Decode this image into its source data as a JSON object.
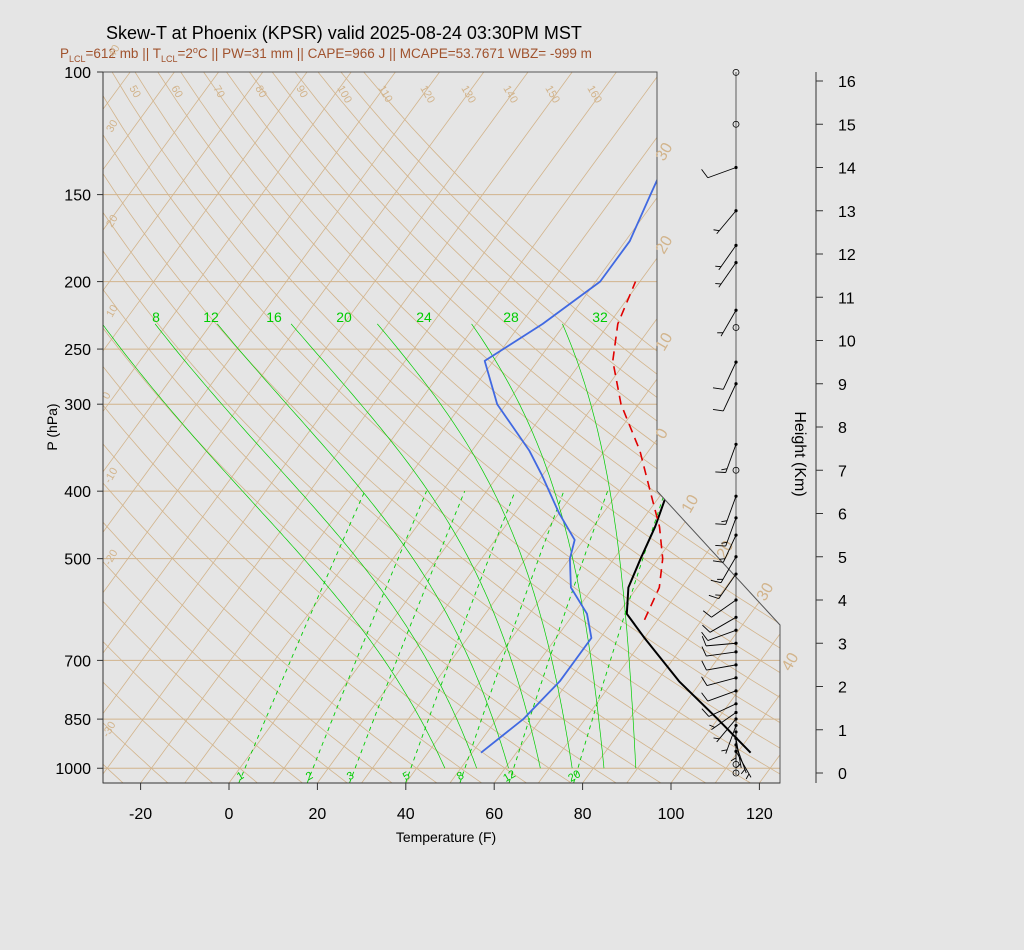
{
  "title": "Skew-T at Phoenix (KPSR) valid 2025-08-24 03:30PM MST",
  "subtitle": {
    "p_main": "P",
    "p_sub": "LCL",
    "p_rest": "=612 mb || T",
    "t_sub": "LCL",
    "t_rest": "=2",
    "deg_sup": "o",
    "tail": "C || PW=31 mm || CAPE=966 J || MCAPE=53.7671 WBZ= -999 m"
  },
  "colors": {
    "title": "#000000",
    "subtitle": "#a0522d",
    "temperature": "#000000",
    "dewpoint": "#4169e1",
    "parcel": "#e00000",
    "isotherm": "#d2b48c",
    "isobar": "#d2b48c",
    "dry_adiabat": "#d2b48c",
    "mixing_ratio": "#00cc00",
    "moist_adiabat": "#00cc00",
    "wind": "#000000",
    "background": "#e5e5e5"
  },
  "chart_data": {
    "type": "line",
    "skew_type": "skew-T log-P",
    "xlabel": "Temperature (F)",
    "ylabel": "P (hPa)",
    "xlim": [
      -28,
      125
    ],
    "ylim": [
      1050,
      100
    ],
    "y_scale": "log",
    "x_ticks": [
      "-20",
      "0",
      "20",
      "40",
      "60",
      "80",
      "100",
      "120"
    ],
    "y_ticks": [
      "100",
      "150",
      "200",
      "250",
      "300",
      "400",
      "500",
      "700",
      "850",
      "1000"
    ],
    "isotherm_labels": [
      "-30",
      "-20",
      "-10",
      "0",
      "10",
      "20",
      "30",
      "40"
    ],
    "dry_adiabat_labels": [
      "50",
      "60",
      "70",
      "80",
      "90",
      "100",
      "110",
      "120",
      "130",
      "140",
      "150",
      "160"
    ],
    "mixing_ratio_labels": [
      "1",
      "2",
      "3",
      "5",
      "8",
      "12",
      "20"
    ],
    "moist_adiabat_labels": [
      "8",
      "12",
      "16",
      "20",
      "24",
      "28",
      "32"
    ],
    "series": [
      {
        "key": "temperature",
        "points": [
          [
            113,
            950
          ],
          [
            100,
            850
          ],
          [
            85,
            750
          ],
          [
            70,
            650
          ],
          [
            62,
            600
          ],
          [
            58,
            550
          ],
          [
            56,
            500
          ],
          [
            54,
            450
          ],
          [
            51,
            400
          ],
          [
            46,
            350
          ],
          [
            38,
            300
          ],
          [
            30,
            250
          ],
          [
            26,
            220
          ],
          [
            25,
            200
          ],
          [
            24,
            180
          ],
          [
            24,
            165
          ],
          [
            27,
            130
          ],
          [
            33,
            100
          ]
        ]
      },
      {
        "key": "dewpoint",
        "points": [
          [
            52,
            950
          ],
          [
            56,
            850
          ],
          [
            58,
            750
          ],
          [
            58,
            650
          ],
          [
            53,
            600
          ],
          [
            45,
            550
          ],
          [
            40,
            500
          ],
          [
            38,
            470
          ],
          [
            30,
            430
          ],
          [
            20,
            380
          ],
          [
            13,
            350
          ],
          [
            -2,
            300
          ],
          [
            -12,
            260
          ],
          [
            -5,
            230
          ],
          [
            1,
            200
          ],
          [
            1,
            175
          ],
          [
            -2,
            150
          ],
          [
            -4,
            135
          ],
          [
            4,
            120
          ],
          [
            10,
            100
          ]
        ]
      },
      {
        "key": "parcel",
        "points": [
          [
            67,
            612
          ],
          [
            65,
            550
          ],
          [
            61,
            500
          ],
          [
            55,
            450
          ],
          [
            47,
            400
          ],
          [
            38,
            350
          ],
          [
            26,
            300
          ],
          [
            17,
            260
          ],
          [
            12,
            230
          ],
          [
            9,
            200
          ]
        ]
      }
    ],
    "height_axis": {
      "label": "Height (Km)",
      "ticks": [
        "0",
        "1",
        "2",
        "3",
        "4",
        "5",
        "6",
        "7",
        "8",
        "9",
        "10",
        "11",
        "12",
        "13",
        "14",
        "15",
        "16"
      ]
    },
    "wind_barbs": [
      {
        "height_km": 0.0,
        "speed_kt": 0,
        "dir_deg": 0
      },
      {
        "height_km": 0.2,
        "speed_kt": 0,
        "dir_deg": 0
      },
      {
        "height_km": 0.5,
        "speed_kt": 5,
        "dir_deg": 150
      },
      {
        "height_km": 0.65,
        "speed_kt": 5,
        "dir_deg": 160
      },
      {
        "height_km": 0.8,
        "speed_kt": 5,
        "dir_deg": 170
      },
      {
        "height_km": 0.95,
        "speed_kt": 5,
        "dir_deg": 180
      },
      {
        "height_km": 1.1,
        "speed_kt": 5,
        "dir_deg": 200
      },
      {
        "height_km": 1.25,
        "speed_kt": 5,
        "dir_deg": 220
      },
      {
        "height_km": 1.4,
        "speed_kt": 5,
        "dir_deg": 235
      },
      {
        "height_km": 1.6,
        "speed_kt": 10,
        "dir_deg": 245
      },
      {
        "height_km": 1.9,
        "speed_kt": 10,
        "dir_deg": 250
      },
      {
        "height_km": 2.2,
        "speed_kt": 10,
        "dir_deg": 255
      },
      {
        "height_km": 2.5,
        "speed_kt": 10,
        "dir_deg": 260
      },
      {
        "height_km": 2.8,
        "speed_kt": 10,
        "dir_deg": 262
      },
      {
        "height_km": 3.0,
        "speed_kt": 10,
        "dir_deg": 265
      },
      {
        "height_km": 3.3,
        "speed_kt": 10,
        "dir_deg": 250
      },
      {
        "height_km": 3.6,
        "speed_kt": 10,
        "dir_deg": 240
      },
      {
        "height_km": 4.0,
        "speed_kt": 10,
        "dir_deg": 235
      },
      {
        "height_km": 4.6,
        "speed_kt": 15,
        "dir_deg": 215
      },
      {
        "height_km": 5.0,
        "speed_kt": 15,
        "dir_deg": 210
      },
      {
        "height_km": 5.5,
        "speed_kt": 15,
        "dir_deg": 205
      },
      {
        "height_km": 5.9,
        "speed_kt": 15,
        "dir_deg": 200
      },
      {
        "height_km": 6.4,
        "speed_kt": 15,
        "dir_deg": 200
      },
      {
        "height_km": 7.0,
        "speed_kt": 0,
        "dir_deg": 0
      },
      {
        "height_km": 7.6,
        "speed_kt": 15,
        "dir_deg": 200
      },
      {
        "height_km": 9.0,
        "speed_kt": 10,
        "dir_deg": 205
      },
      {
        "height_km": 9.5,
        "speed_kt": 10,
        "dir_deg": 205
      },
      {
        "height_km": 10.3,
        "speed_kt": 0,
        "dir_deg": 0
      },
      {
        "height_km": 10.7,
        "speed_kt": 5,
        "dir_deg": 210
      },
      {
        "height_km": 11.8,
        "speed_kt": 5,
        "dir_deg": 215
      },
      {
        "height_km": 12.2,
        "speed_kt": 5,
        "dir_deg": 215
      },
      {
        "height_km": 13.0,
        "speed_kt": 5,
        "dir_deg": 220
      },
      {
        "height_km": 14.0,
        "speed_kt": 10,
        "dir_deg": 250
      },
      {
        "height_km": 15.0,
        "speed_kt": 0,
        "dir_deg": 0
      },
      {
        "height_km": 16.2,
        "speed_kt": 0,
        "dir_deg": 0
      }
    ]
  }
}
